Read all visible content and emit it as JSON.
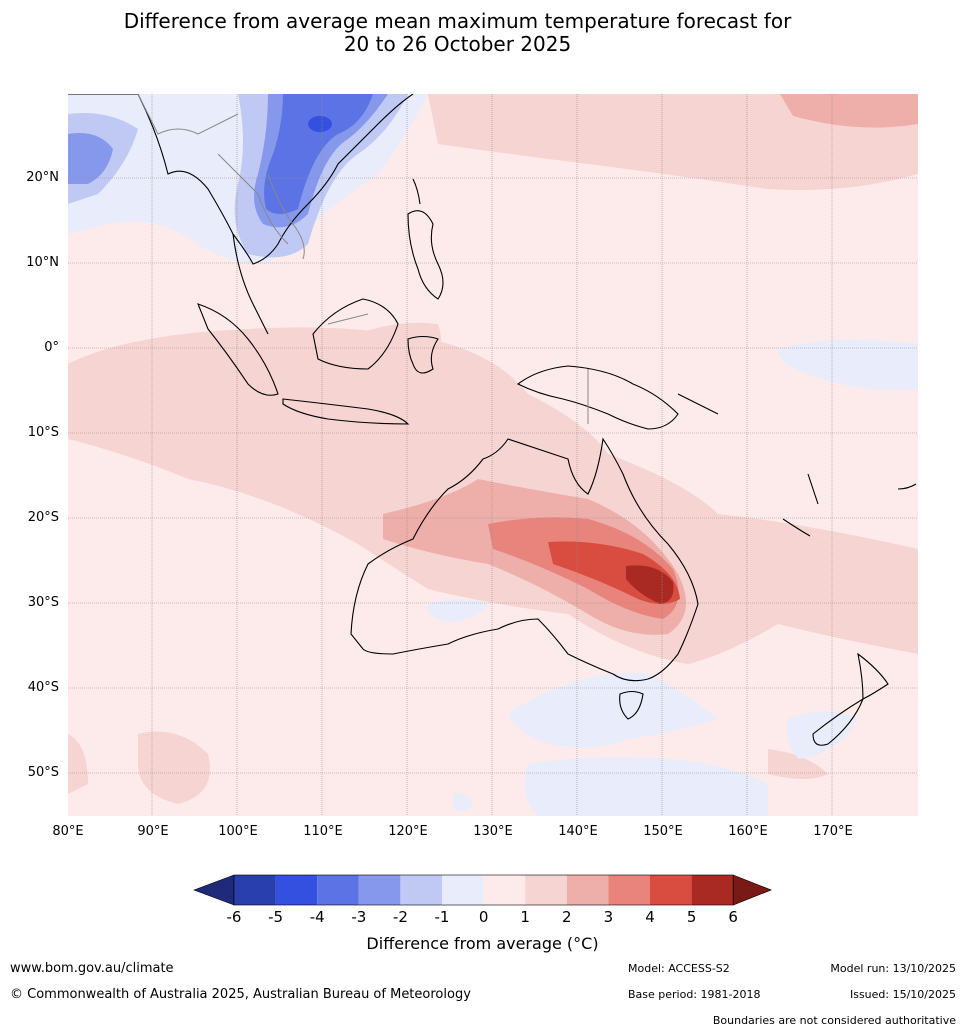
{
  "title_line1": "Difference from average mean maximum temperature forecast for",
  "title_line2": "20 to 26 October 2025",
  "lat_labels": [
    "20°N",
    "10°N",
    "0°",
    "10°S",
    "20°S",
    "30°S",
    "40°S",
    "50°S"
  ],
  "lon_labels": [
    "80°E",
    "90°E",
    "100°E",
    "110°E",
    "120°E",
    "130°E",
    "140°E",
    "150°E",
    "160°E",
    "170°E"
  ],
  "legend": {
    "title": "Difference from average (°C)",
    "ticks": [
      "-6",
      "-5",
      "-4",
      "-3",
      "-2",
      "-1",
      "0",
      "1",
      "2",
      "3",
      "4",
      "5",
      "6"
    ],
    "colors": [
      "#1f2b7a",
      "#2a3fae",
      "#3350e0",
      "#5b73e4",
      "#8598ec",
      "#c0c9f4",
      "#e8ecfb",
      "#fcebea",
      "#f5d4d2",
      "#eeaeaa",
      "#e8847c",
      "#d94c40",
      "#a82a22",
      "#7a1a16"
    ]
  },
  "footer": {
    "website": "www.bom.gov.au/climate",
    "copyright": "© Commonwealth of Australia 2025, Australian Bureau of Meteorology",
    "model": "Model: ACCESS-S2",
    "base_period": "Base period: 1981-2018",
    "model_run": "Model run: 13/10/2025",
    "issued": "Issued: 15/10/2025",
    "disclaimer": "Boundaries are not considered authoritative"
  }
}
